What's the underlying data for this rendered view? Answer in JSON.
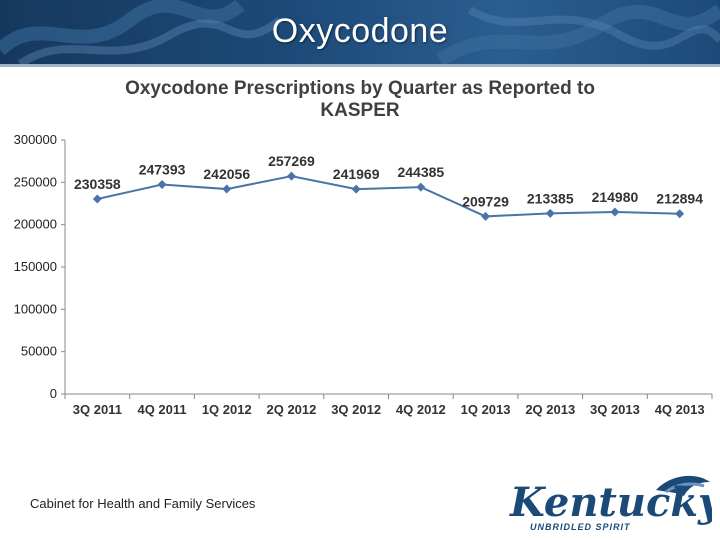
{
  "slide": {
    "title": "Oxycodone",
    "footer": "Cabinet for Health and Family Services"
  },
  "logo": {
    "name": "Kentucky",
    "tagline": "UNBRIDLED SPIRIT"
  },
  "colors": {
    "header": "#1c4a78",
    "line": "#4a74a8",
    "marker": "#4a74a8"
  },
  "chart_data": {
    "type": "line",
    "title": "Oxycodone Prescriptions by Quarter as Reported to KASPER",
    "title_lines": [
      "Oxycodone Prescriptions by Quarter as Reported to",
      "KASPER"
    ],
    "categories": [
      "3Q 2011",
      "4Q 2011",
      "1Q 2012",
      "2Q 2012",
      "3Q 2012",
      "4Q 2012",
      "1Q 2013",
      "2Q 2013",
      "3Q 2013",
      "4Q 2013"
    ],
    "values": [
      230358,
      247393,
      242056,
      257269,
      241969,
      244385,
      209729,
      213385,
      214980,
      212894
    ],
    "data_labels": [
      "230358",
      "247393",
      "242056",
      "257269",
      "241969",
      "244385",
      "209729",
      "213385",
      "214980",
      "212894"
    ],
    "yticks": [
      0,
      50000,
      100000,
      150000,
      200000,
      250000,
      300000
    ],
    "ytick_labels": [
      "0",
      "50000",
      "100000",
      "150000",
      "200000",
      "250000",
      "300000"
    ],
    "ylim": [
      0,
      300000
    ],
    "xlabel": "",
    "ylabel": "",
    "grid": false,
    "legend": "none"
  }
}
